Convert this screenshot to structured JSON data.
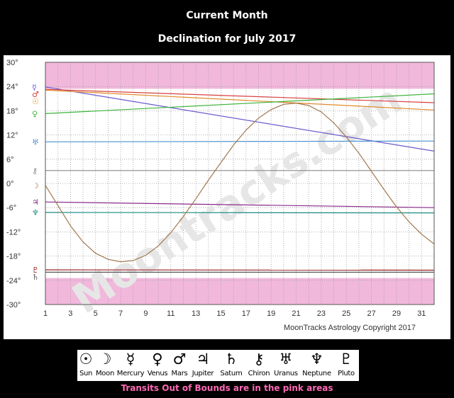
{
  "header": {
    "line1": "Current Month",
    "line2": "Declination for July 2017"
  },
  "chart_data": {
    "type": "line",
    "title": "Declination for July 2017",
    "xlim": [
      1,
      32
    ],
    "ylim": [
      -30,
      30
    ],
    "x_ticks": [
      1,
      3,
      5,
      7,
      9,
      11,
      13,
      15,
      17,
      19,
      21,
      23,
      25,
      27,
      29,
      31
    ],
    "y_ticks": [
      {
        "value": 30,
        "label": "30°"
      },
      {
        "value": 24,
        "label": "24°"
      },
      {
        "value": 18,
        "label": "18°"
      },
      {
        "value": 12,
        "label": "12°"
      },
      {
        "value": 6,
        "label": "6°"
      },
      {
        "value": 0,
        "label": "0°"
      },
      {
        "value": -6,
        "label": "-6°"
      },
      {
        "value": -12,
        "label": "-12°"
      },
      {
        "value": -18,
        "label": "-18°"
      },
      {
        "value": -24,
        "label": "-24°"
      },
      {
        "value": -30,
        "label": "-30°"
      }
    ],
    "out_of_bounds": [
      [
        23.44,
        30
      ],
      [
        -30,
        -23.44
      ]
    ],
    "grid": true,
    "watermark": "Moontracks.com",
    "copyright": "MoonTracks Astrology Copyright 2017",
    "series": [
      {
        "name": "Mercury",
        "symbol": "☿",
        "color": "#6a5acd",
        "x": [
          1,
          32
        ],
        "y": [
          23.9,
          8.0
        ]
      },
      {
        "name": "Mars",
        "symbol": "♂",
        "color": "#d84040",
        "x": [
          1,
          32
        ],
        "y": [
          23.3,
          20.0
        ]
      },
      {
        "name": "Sun",
        "symbol": "☉",
        "color": "#e08a2a",
        "x": [
          1,
          32
        ],
        "y": [
          23.1,
          18.2
        ]
      },
      {
        "name": "Venus",
        "symbol": "♀",
        "color": "#3cb43c",
        "x": [
          1,
          32
        ],
        "y": [
          17.3,
          22.2
        ]
      },
      {
        "name": "Uranus",
        "symbol": "♅",
        "color": "#4a90d0",
        "x": [
          1,
          32
        ],
        "y": [
          10.3,
          10.5
        ]
      },
      {
        "name": "Chiron",
        "symbol": "⚷",
        "color": "#888888",
        "x": [
          1,
          32
        ],
        "y": [
          3.2,
          3.2
        ]
      },
      {
        "name": "Jupiter",
        "symbol": "♃",
        "color": "#8a2a8a",
        "x": [
          1,
          32
        ],
        "y": [
          -4.6,
          -6.0
        ]
      },
      {
        "name": "Neptune",
        "symbol": "♆",
        "color": "#1a8a80",
        "x": [
          1,
          32
        ],
        "y": [
          -7.2,
          -7.3
        ]
      },
      {
        "name": "Pluto",
        "symbol": "♇",
        "color": "#a02020",
        "x": [
          1,
          32
        ],
        "y": [
          -21.4,
          -21.5
        ]
      },
      {
        "name": "Saturn",
        "symbol": "♄",
        "color": "#555555",
        "x": [
          1,
          32
        ],
        "y": [
          -22.0,
          -22.0
        ]
      },
      {
        "name": "Moon",
        "symbol": "☽",
        "color": "#a07850",
        "x": [
          1,
          2,
          3,
          4,
          5,
          6,
          7,
          8,
          9,
          10,
          11,
          12,
          13,
          14,
          15,
          16,
          17,
          18,
          19,
          20,
          21,
          22,
          23,
          24,
          25,
          26,
          27,
          28,
          29,
          30,
          31,
          32
        ],
        "y": [
          -0.5,
          -5.5,
          -10.5,
          -14.5,
          -17.3,
          -18.8,
          -19.4,
          -19.1,
          -17.8,
          -15.5,
          -12.2,
          -8.2,
          -3.8,
          0.8,
          5.2,
          9.5,
          13.2,
          16.2,
          18.3,
          19.6,
          19.9,
          19.3,
          17.7,
          15.0,
          11.5,
          7.5,
          3.0,
          -1.5,
          -5.8,
          -9.5,
          -12.6,
          -15.0
        ]
      }
    ]
  },
  "legend": {
    "items": [
      {
        "symbol": "☉",
        "label": "Sun"
      },
      {
        "symbol": "☽",
        "label": "Moon"
      },
      {
        "symbol": "☿",
        "label": "Mercury"
      },
      {
        "symbol": "♀",
        "label": "Venus"
      },
      {
        "symbol": "♂",
        "label": "Mars"
      },
      {
        "symbol": "♃",
        "label": "Jupiter"
      },
      {
        "symbol": "♄",
        "label": "Saturn"
      },
      {
        "symbol": "⚷",
        "label": "Chiron"
      },
      {
        "symbol": "♅",
        "label": "Uranus"
      },
      {
        "symbol": "♆",
        "label": "Neptune"
      },
      {
        "symbol": "♇",
        "label": "Pluto"
      }
    ]
  },
  "footnote": "Transits Out of Bounds are in the pink areas"
}
